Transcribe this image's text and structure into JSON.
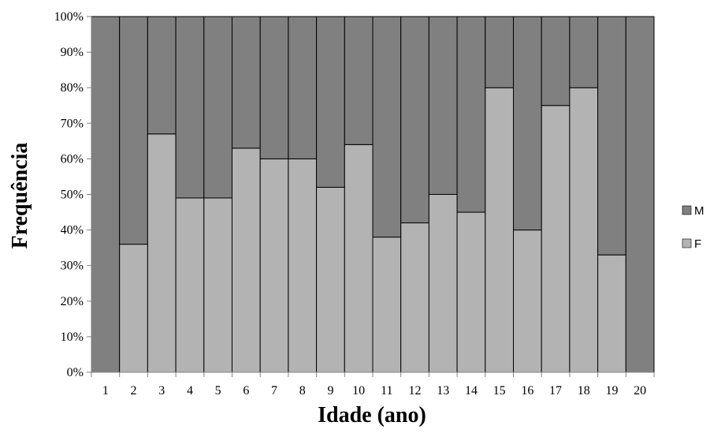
{
  "chart_data": {
    "type": "bar",
    "stacked": true,
    "percent": true,
    "categories": [
      "1",
      "2",
      "3",
      "4",
      "5",
      "6",
      "7",
      "8",
      "9",
      "10",
      "11",
      "12",
      "13",
      "14",
      "15",
      "16",
      "17",
      "18",
      "19",
      "20"
    ],
    "series": [
      {
        "name": "F",
        "color": "#b3b3b3",
        "values": [
          0,
          36,
          67,
          49,
          49,
          63,
          60,
          60,
          52,
          64,
          38,
          42,
          50,
          45,
          80,
          40,
          75,
          80,
          33,
          0
        ]
      },
      {
        "name": "M",
        "color": "#808080",
        "values": [
          100,
          64,
          33,
          51,
          51,
          37,
          40,
          40,
          48,
          36,
          62,
          58,
          50,
          55,
          20,
          60,
          25,
          20,
          67,
          100
        ]
      }
    ],
    "xlabel": "Idade (ano)",
    "ylabel": "Frequência",
    "ylim": [
      0,
      100
    ],
    "yticks": [
      "0%",
      "10%",
      "20%",
      "30%",
      "40%",
      "50%",
      "60%",
      "70%",
      "80%",
      "90%",
      "100%"
    ],
    "grid": false,
    "legend_position": "right",
    "legend_order": [
      "M",
      "F"
    ]
  }
}
